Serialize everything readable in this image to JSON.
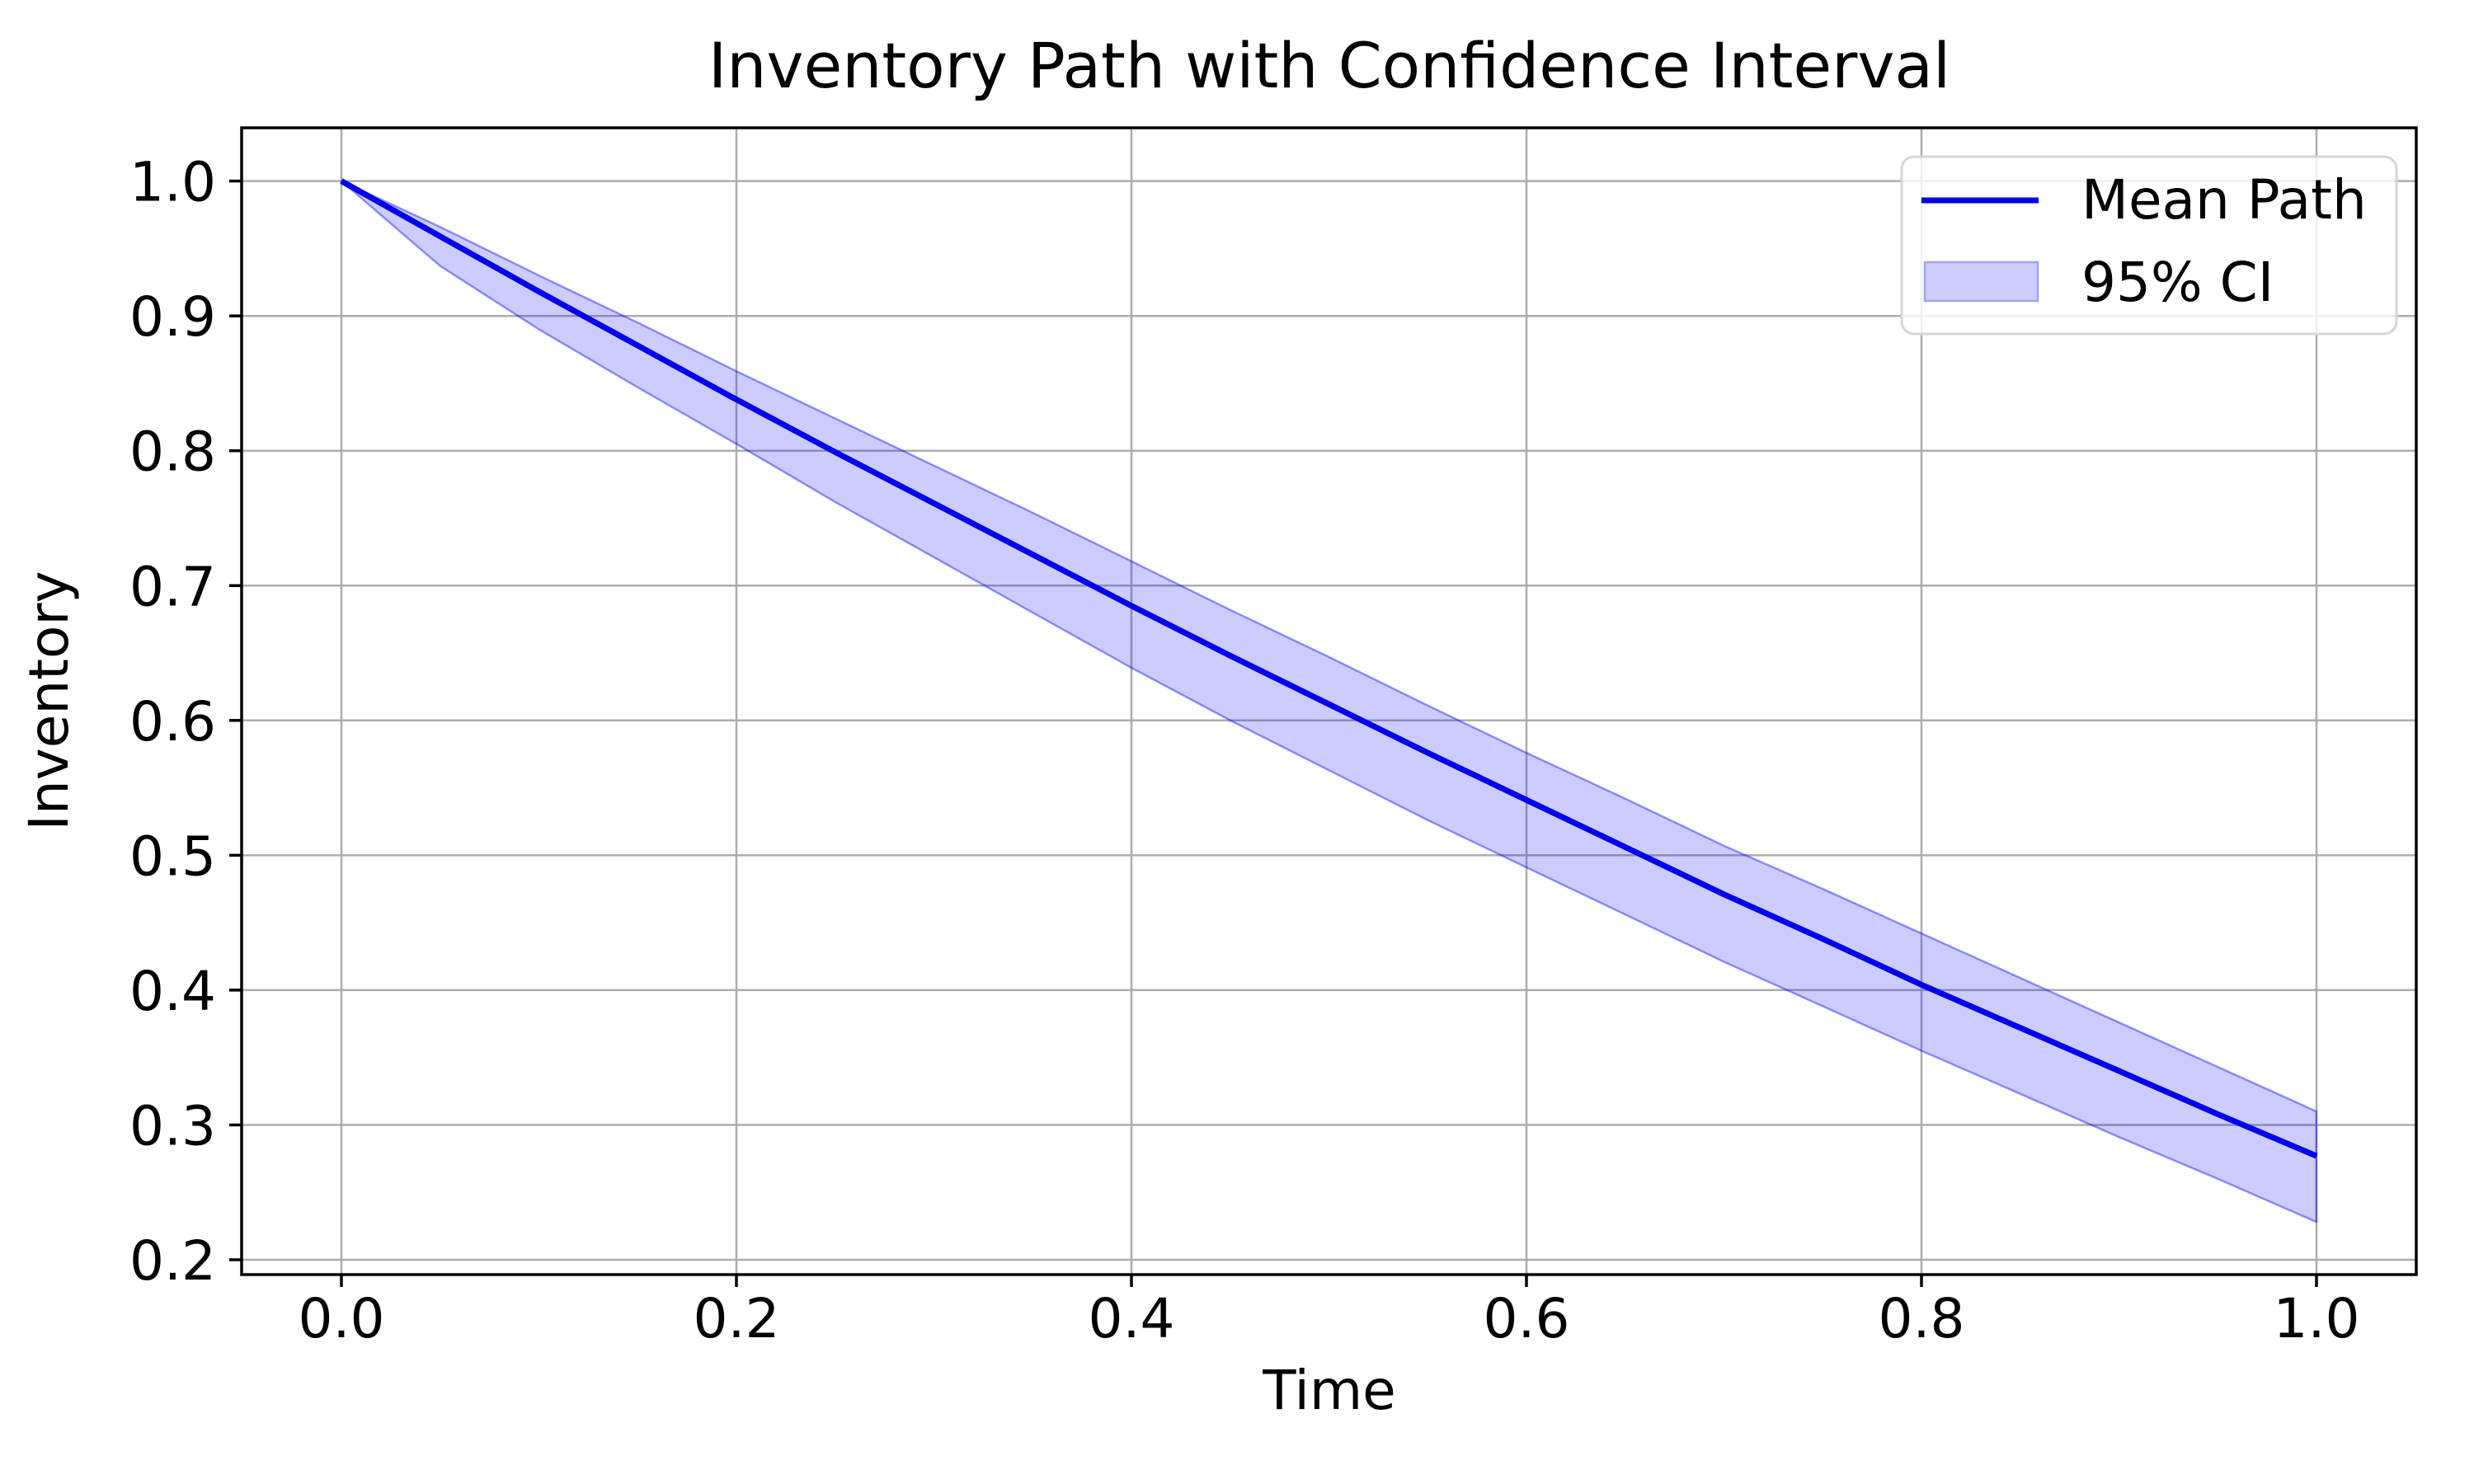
{
  "chart_data": {
    "type": "line",
    "title": "Inventory Path with Confidence Interval",
    "xlabel": "Time",
    "ylabel": "Inventory",
    "grid": true,
    "xlim": [
      -0.0505,
      1.0505
    ],
    "ylim": [
      0.189,
      1.0395
    ],
    "x_ticks": [
      {
        "value": 0.0,
        "label": "0.0"
      },
      {
        "value": 0.2,
        "label": "0.2"
      },
      {
        "value": 0.4,
        "label": "0.4"
      },
      {
        "value": 0.6,
        "label": "0.6"
      },
      {
        "value": 0.8,
        "label": "0.8"
      },
      {
        "value": 1.0,
        "label": "1.0"
      }
    ],
    "y_ticks": [
      {
        "value": 0.2,
        "label": "0.2"
      },
      {
        "value": 0.3,
        "label": "0.3"
      },
      {
        "value": 0.4,
        "label": "0.4"
      },
      {
        "value": 0.5,
        "label": "0.5"
      },
      {
        "value": 0.6,
        "label": "0.6"
      },
      {
        "value": 0.7,
        "label": "0.7"
      },
      {
        "value": 0.8,
        "label": "0.8"
      },
      {
        "value": 0.9,
        "label": "0.9"
      },
      {
        "value": 1.0,
        "label": "1.0"
      }
    ],
    "x": [
      0.0,
      0.05,
      0.1,
      0.15,
      0.2,
      0.25,
      0.3,
      0.35,
      0.4,
      0.45,
      0.5,
      0.55,
      0.6,
      0.65,
      0.7,
      0.75,
      0.8,
      0.85,
      0.9,
      0.95,
      1.0
    ],
    "series": [
      {
        "name": "Mean Path",
        "values": [
          1.0,
          0.959,
          0.918,
          0.878,
          0.838,
          0.799,
          0.761,
          0.723,
          0.685,
          0.648,
          0.612,
          0.576,
          0.541,
          0.506,
          0.471,
          0.438,
          0.404,
          0.372,
          0.34,
          0.308,
          0.277
        ]
      },
      {
        "name": "95% CI upper",
        "values": [
          1.0,
          0.966,
          0.93,
          0.895,
          0.859,
          0.824,
          0.789,
          0.754,
          0.718,
          0.682,
          0.647,
          0.611,
          0.576,
          0.542,
          0.507,
          0.475,
          0.442,
          0.409,
          0.376,
          0.343,
          0.31
        ]
      },
      {
        "name": "95% CI lower",
        "values": [
          1.0,
          0.937,
          0.89,
          0.847,
          0.805,
          0.762,
          0.721,
          0.68,
          0.639,
          0.6,
          0.563,
          0.526,
          0.491,
          0.456,
          0.421,
          0.388,
          0.355,
          0.323,
          0.291,
          0.26,
          0.228
        ]
      }
    ],
    "legend": {
      "position": "upper right",
      "entries": [
        {
          "label": "Mean Path",
          "type": "line"
        },
        {
          "label": "95% CI",
          "type": "patch"
        }
      ]
    },
    "colors": {
      "mean_line": "#0000ee",
      "ci_fill": "rgba(0,0,255,0.2)",
      "ci_edge": "rgba(0,0,255,0.4)",
      "ci_patch_fill": "#ccccff",
      "ci_patch_edge": "#a3a3f0",
      "grid": "#adadad",
      "spine": "#000000",
      "legend_border": "#d5d5d5",
      "legend_bg": "rgba(255,255,255,0.8)"
    }
  }
}
